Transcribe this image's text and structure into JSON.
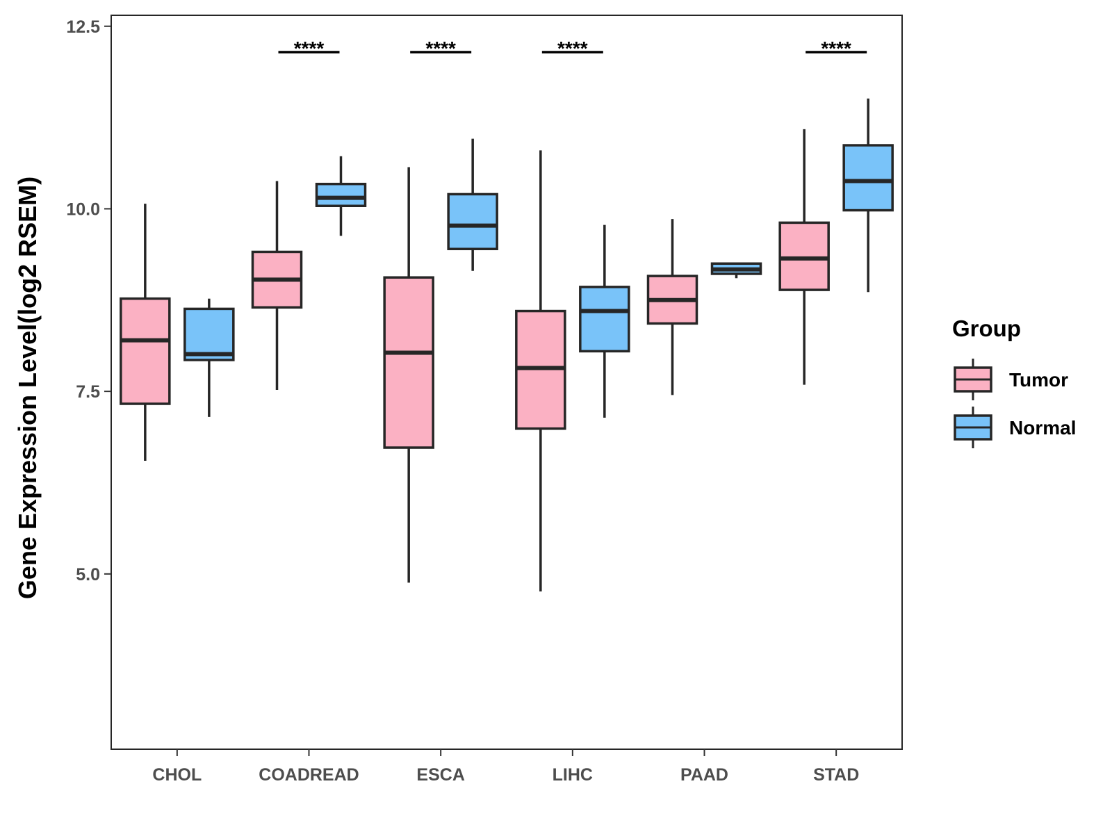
{
  "chart_data": {
    "type": "boxplot",
    "title": "",
    "xlabel": "",
    "ylabel": "Gene Expression Level(log2 RSEM)",
    "ylim": [
      2.6,
      12.65
    ],
    "yticks": [
      "5.0",
      "7.5",
      "10.0",
      "12.5"
    ],
    "ytick_values": [
      5.0,
      7.5,
      10.0,
      12.5
    ],
    "categories": [
      "CHOL",
      "COADREAD",
      "ESCA",
      "LIHC",
      "PAAD",
      "STAD"
    ],
    "legend": {
      "title": "Group",
      "position": "right",
      "entries": [
        "Tumor",
        "Normal"
      ]
    },
    "series": [
      {
        "name": "Tumor",
        "color": "#FBB1C3",
        "boxes": [
          {
            "category": "CHOL",
            "whisker_low": 6.55,
            "q1": 7.33,
            "median": 8.2,
            "q3": 8.77,
            "whisker_high": 10.07
          },
          {
            "category": "COADREAD",
            "whisker_low": 7.52,
            "q1": 8.65,
            "median": 9.03,
            "q3": 9.41,
            "whisker_high": 10.38
          },
          {
            "category": "ESCA",
            "whisker_low": 4.88,
            "q1": 6.73,
            "median": 8.03,
            "q3": 9.06,
            "whisker_high": 10.57
          },
          {
            "category": "LIHC",
            "whisker_low": 4.76,
            "q1": 6.99,
            "median": 7.82,
            "q3": 8.6,
            "whisker_high": 10.8
          },
          {
            "category": "PAAD",
            "whisker_low": 7.45,
            "q1": 8.43,
            "median": 8.75,
            "q3": 9.08,
            "whisker_high": 9.86
          },
          {
            "category": "STAD",
            "whisker_low": 7.59,
            "q1": 8.89,
            "median": 9.32,
            "q3": 9.81,
            "whisker_high": 11.09
          }
        ]
      },
      {
        "name": "Normal",
        "color": "#79C3F9",
        "boxes": [
          {
            "category": "CHOL",
            "whisker_low": 7.15,
            "q1": 7.93,
            "median": 8.01,
            "q3": 8.63,
            "whisker_high": 8.77
          },
          {
            "category": "COADREAD",
            "whisker_low": 9.63,
            "q1": 10.04,
            "median": 10.15,
            "q3": 10.34,
            "whisker_high": 10.72
          },
          {
            "category": "ESCA",
            "whisker_low": 9.15,
            "q1": 9.45,
            "median": 9.77,
            "q3": 10.2,
            "whisker_high": 10.96
          },
          {
            "category": "LIHC",
            "whisker_low": 7.14,
            "q1": 8.05,
            "median": 8.6,
            "q3": 8.93,
            "whisker_high": 9.78
          },
          {
            "category": "PAAD",
            "whisker_low": 9.05,
            "q1": 9.11,
            "median": 9.17,
            "q3": 9.25,
            "whisker_high": 9.25
          },
          {
            "category": "STAD",
            "whisker_low": 8.86,
            "q1": 9.98,
            "median": 10.38,
            "q3": 10.87,
            "whisker_high": 11.51
          }
        ]
      }
    ],
    "significance": [
      {
        "category": "COADREAD",
        "label": "****"
      },
      {
        "category": "ESCA",
        "label": "****"
      },
      {
        "category": "LIHC",
        "label": "****"
      },
      {
        "category": "STAD",
        "label": "****"
      }
    ]
  }
}
